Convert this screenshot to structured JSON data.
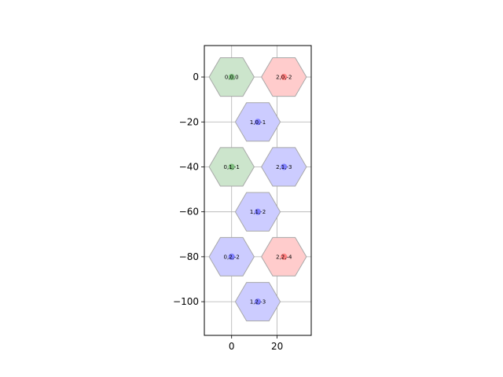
{
  "chart_data": {
    "type": "scatter",
    "title": "",
    "xlabel": "",
    "ylabel": "",
    "xlim": [
      -12,
      35
    ],
    "ylim": [
      -115,
      14
    ],
    "grid": true,
    "x_ticks": [
      0,
      20
    ],
    "y_ticks": [
      0,
      -20,
      -40,
      -60,
      -80,
      -100
    ],
    "hex_radius": 9.9,
    "fill_colors": {
      "green": "#cce5cc",
      "red": "#ffcccc",
      "blue": "#ccccff"
    },
    "point_colors": {
      "green": "#7fbf7f",
      "red": "#ff7f7f",
      "blue": "#7f7fff"
    },
    "cells": [
      {
        "label": "0,0,0",
        "x": 0,
        "y": 0,
        "color": "green"
      },
      {
        "label": "2,0,-2",
        "x": 23,
        "y": 0,
        "color": "red"
      },
      {
        "label": "1,0,-1",
        "x": 11.5,
        "y": -20,
        "color": "blue"
      },
      {
        "label": "0,1,-1",
        "x": 0,
        "y": -40,
        "color": "green"
      },
      {
        "label": "2,1,-3",
        "x": 23,
        "y": -40,
        "color": "blue"
      },
      {
        "label": "1,1,-2",
        "x": 11.5,
        "y": -60,
        "color": "blue"
      },
      {
        "label": "0,2,-2",
        "x": 0,
        "y": -80,
        "color": "blue"
      },
      {
        "label": "2,2,-4",
        "x": 23,
        "y": -80,
        "color": "red"
      },
      {
        "label": "1,2,-3",
        "x": 11.5,
        "y": -100,
        "color": "blue"
      }
    ]
  }
}
